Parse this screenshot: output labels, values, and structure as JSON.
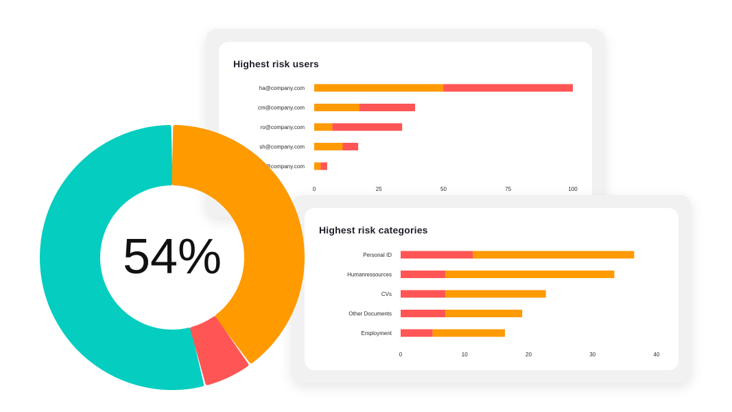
{
  "colors": {
    "orange": "#ff9a00",
    "red": "#ff5555",
    "teal": "#05cdc0",
    "card_bg": "#f1f1f1"
  },
  "chart_data": [
    {
      "type": "pie",
      "center_label": "54%",
      "slices": [
        {
          "value": 54,
          "color": "#05cdc0"
        },
        {
          "value": 40,
          "color": "#ff9a00"
        },
        {
          "value": 6,
          "color": "#ff5555"
        }
      ]
    },
    {
      "type": "bar",
      "orientation": "horizontal",
      "stacked": true,
      "title": "Highest risk users",
      "categories": [
        "ha@company.com",
        "cm@company.com",
        "ro@company.com",
        "sh@company.com",
        "…@company.com"
      ],
      "series": [
        {
          "values": [
            50,
            17.5,
            7,
            11,
            2.5
          ],
          "color": "#ff9a00"
        },
        {
          "values": [
            50,
            21.5,
            27,
            6,
            2.5
          ],
          "color": "#ff5555"
        }
      ],
      "xlim": [
        0,
        100
      ],
      "xticks": [
        "0",
        "25",
        "50",
        "75",
        "100"
      ],
      "grid": false
    },
    {
      "type": "bar",
      "orientation": "horizontal",
      "stacked": true,
      "title": "Highest risk categories",
      "categories": [
        "Personal ID",
        "Humanressources",
        "CVs",
        "Other Documents",
        "Employment"
      ],
      "series": [
        {
          "values": [
            11.3,
            7,
            7,
            7,
            5
          ],
          "color": "#ff5555"
        },
        {
          "values": [
            25.2,
            26.4,
            15.7,
            12,
            11.3
          ],
          "color": "#ff9a00"
        }
      ],
      "xlim": [
        0,
        40
      ],
      "xticks": [
        "0",
        "10",
        "20",
        "30",
        "40"
      ],
      "grid": false
    }
  ]
}
